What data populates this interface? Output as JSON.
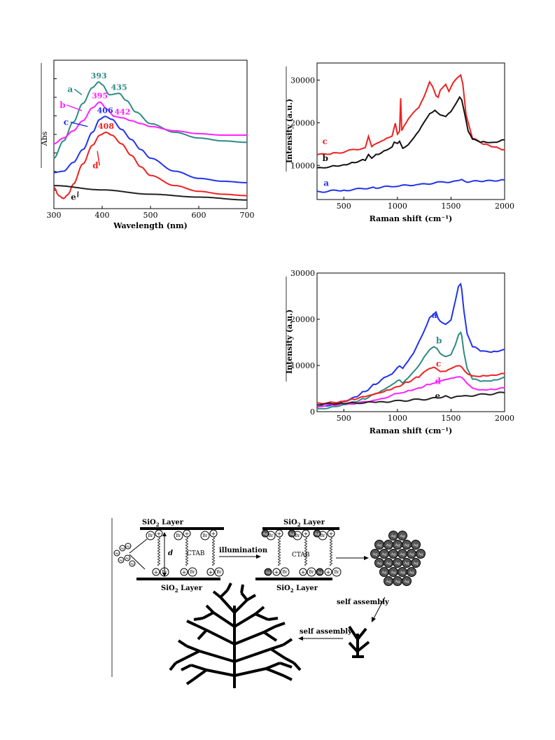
{
  "chart_data": [
    {
      "type": "line",
      "xlabel": "Wavelength (nm)",
      "ylabel": "Abs",
      "xlim": [
        300,
        700
      ],
      "xticks": [
        300,
        400,
        500,
        600,
        700
      ],
      "series": [
        {
          "name": "a",
          "color": "#2e8b84",
          "x": [
            300,
            320,
            340,
            360,
            380,
            393,
            400,
            415,
            435,
            450,
            470,
            500,
            550,
            600,
            650,
            700
          ],
          "y": [
            0.7,
            0.82,
            0.95,
            1.08,
            1.19,
            1.23,
            1.21,
            1.14,
            1.15,
            1.1,
            1.02,
            0.94,
            0.88,
            0.84,
            0.82,
            0.81
          ]
        },
        {
          "name": "b",
          "color": "#ff22ff",
          "x": [
            300,
            320,
            340,
            360,
            380,
            395,
            410,
            425,
            442,
            460,
            480,
            500,
            550,
            600,
            650,
            700
          ],
          "y": [
            0.8,
            0.84,
            0.89,
            0.96,
            1.05,
            1.09,
            1.04,
            0.99,
            0.98,
            0.96,
            0.94,
            0.92,
            0.89,
            0.87,
            0.86,
            0.86
          ]
        },
        {
          "name": "c",
          "color": "#2233ee",
          "x": [
            300,
            320,
            340,
            360,
            380,
            395,
            406,
            420,
            440,
            460,
            480,
            500,
            550,
            600,
            650,
            700
          ],
          "y": [
            0.6,
            0.61,
            0.67,
            0.76,
            0.88,
            0.97,
            0.99,
            0.97,
            0.9,
            0.83,
            0.76,
            0.7,
            0.61,
            0.56,
            0.54,
            0.53
          ]
        },
        {
          "name": "d",
          "color": "#ee2222",
          "x": [
            300,
            310,
            320,
            330,
            340,
            360,
            380,
            395,
            408,
            420,
            440,
            460,
            480,
            500,
            550,
            600,
            650,
            700
          ],
          "y": [
            0.5,
            0.44,
            0.42,
            0.45,
            0.52,
            0.66,
            0.79,
            0.86,
            0.88,
            0.86,
            0.8,
            0.72,
            0.64,
            0.58,
            0.51,
            0.47,
            0.45,
            0.44
          ]
        },
        {
          "name": "e",
          "color": "#222222",
          "x": [
            300,
            400,
            500,
            600,
            700
          ],
          "y": [
            0.51,
            0.48,
            0.45,
            0.43,
            0.41
          ]
        }
      ],
      "annotations": [
        "393",
        "435",
        "395",
        "442",
        "406",
        "408"
      ],
      "ylim": [
        0.35,
        1.38
      ],
      "curve_labels": [
        "a",
        "b",
        "c",
        "d",
        "e"
      ]
    },
    {
      "type": "line",
      "xlabel": "Raman shift  (cm⁻¹)",
      "ylabel": "Intensity  (a.u.)",
      "xlim": [
        250,
        2000
      ],
      "ylim": [
        2000,
        34000
      ],
      "xticks": [
        500,
        1000,
        1500,
        2000
      ],
      "yticks": [
        10000,
        20000,
        30000
      ],
      "series": [
        {
          "name": "c",
          "color": "#ee2222",
          "x": [
            250,
            400,
            600,
            700,
            730,
            760,
            800,
            900,
            950,
            980,
            1000,
            1020,
            1030,
            1040,
            1060,
            1100,
            1150,
            1200,
            1250,
            1300,
            1330,
            1360,
            1380,
            1400,
            1420,
            1450,
            1480,
            1520,
            1560,
            1590,
            1610,
            1640,
            1700,
            1800,
            1900,
            2000
          ],
          "y": [
            12500,
            12800,
            13600,
            14200,
            17000,
            14500,
            15000,
            16200,
            16800,
            20000,
            17500,
            18000,
            25600,
            18000,
            19200,
            21000,
            22500,
            23500,
            26000,
            29500,
            28500,
            26500,
            26000,
            27500,
            28000,
            29000,
            27500,
            29500,
            30500,
            31000,
            29000,
            22000,
            16500,
            15000,
            14200,
            13700
          ]
        },
        {
          "name": "b",
          "color": "#111111",
          "x": [
            250,
            400,
            500,
            600,
            700,
            730,
            760,
            800,
            900,
            950,
            970,
            1000,
            1020,
            1050,
            1100,
            1150,
            1200,
            1250,
            1300,
            1350,
            1400,
            1450,
            1500,
            1550,
            1580,
            1600,
            1630,
            1660,
            1700,
            1800,
            1900,
            2000
          ],
          "y": [
            9300,
            9800,
            10200,
            10800,
            11300,
            12500,
            11500,
            12500,
            13700,
            14500,
            15500,
            15000,
            15500,
            14000,
            15000,
            16500,
            18000,
            20000,
            22000,
            23000,
            22000,
            21500,
            22500,
            24500,
            26000,
            25500,
            22000,
            18000,
            16000,
            15500,
            15500,
            16000
          ]
        },
        {
          "name": "a",
          "color": "#2233ee",
          "x": [
            250,
            500,
            800,
            1000,
            1200,
            1400,
            1550,
            1600,
            1650,
            1800,
            2000
          ],
          "y": [
            3800,
            4200,
            4800,
            5200,
            5500,
            6000,
            6300,
            6800,
            6200,
            6300,
            6600
          ]
        }
      ],
      "curve_labels": [
        "c",
        "b",
        "a"
      ]
    },
    {
      "type": "line",
      "xlabel": "Raman shift  (cm⁻¹)",
      "ylabel": "Intensity  (a.u.)",
      "xlim": [
        250,
        2000
      ],
      "ylim": [
        0,
        30000
      ],
      "xticks": [
        500,
        1000,
        1500,
        2000
      ],
      "yticks": [
        0,
        10000,
        20000,
        30000
      ],
      "series": [
        {
          "name": "a",
          "color": "#2233ee",
          "x": [
            250,
            400,
            500,
            600,
            700,
            800,
            900,
            950,
            1000,
            1020,
            1050,
            1100,
            1150,
            1200,
            1250,
            1300,
            1330,
            1360,
            1380,
            1400,
            1450,
            1500,
            1540,
            1570,
            1590,
            1600,
            1620,
            1650,
            1700,
            1800,
            1900,
            2000
          ],
          "y": [
            1000,
            1500,
            2200,
            3200,
            4500,
            6000,
            7500,
            8000,
            9500,
            10000,
            9500,
            11000,
            12500,
            15000,
            17500,
            20500,
            21000,
            21500,
            20000,
            19500,
            19000,
            20000,
            24000,
            27000,
            27500,
            26500,
            22000,
            17000,
            14000,
            13000,
            13000,
            13500
          ]
        },
        {
          "name": "b",
          "color": "#2e8b84",
          "x": [
            250,
            400,
            500,
            600,
            700,
            800,
            900,
            950,
            1000,
            1020,
            1050,
            1100,
            1150,
            1200,
            1250,
            1300,
            1340,
            1370,
            1400,
            1450,
            1500,
            1540,
            1570,
            1590,
            1600,
            1620,
            1650,
            1700,
            1800,
            1900,
            2000
          ],
          "y": [
            500,
            1000,
            1600,
            2200,
            2800,
            3800,
            5000,
            5800,
            6800,
            7000,
            6200,
            7200,
            8500,
            10000,
            12000,
            13500,
            14000,
            13500,
            12500,
            12000,
            12500,
            14500,
            16500,
            17000,
            16500,
            13000,
            9500,
            7000,
            6500,
            6800,
            7500
          ]
        },
        {
          "name": "c",
          "color": "#ee2222",
          "x": [
            250,
            400,
            500,
            600,
            700,
            800,
            900,
            1000,
            1100,
            1200,
            1250,
            1300,
            1340,
            1360,
            1400,
            1450,
            1500,
            1550,
            1580,
            1600,
            1630,
            1660,
            1700,
            1800,
            1900,
            2000
          ],
          "y": [
            1800,
            2000,
            2300,
            2700,
            3200,
            3800,
            4600,
            5500,
            6500,
            7500,
            8500,
            9200,
            9600,
            9500,
            8800,
            8700,
            9200,
            9800,
            10000,
            9800,
            8800,
            8000,
            7600,
            7800,
            8000,
            8200
          ]
        },
        {
          "name": "d",
          "color": "#ff22ff",
          "x": [
            250,
            400,
            600,
            800,
            1000,
            1100,
            1200,
            1300,
            1350,
            1400,
            1450,
            1500,
            1550,
            1580,
            1600,
            1650,
            1700,
            1800,
            1900,
            2000
          ],
          "y": [
            1200,
            1500,
            1800,
            2500,
            3800,
            4500,
            5200,
            6000,
            6300,
            6500,
            6800,
            7200,
            7600,
            7700,
            7400,
            6000,
            5000,
            4800,
            4900,
            5100
          ]
        },
        {
          "name": "e",
          "color": "#222222",
          "x": [
            250,
            500,
            800,
            1000,
            1200,
            1400,
            1450,
            1500,
            1600,
            1800,
            2000
          ],
          "y": [
            1600,
            1800,
            2000,
            2300,
            2600,
            3000,
            3600,
            3000,
            3300,
            3700,
            4100
          ]
        }
      ],
      "curve_labels": [
        "a",
        "b",
        "c",
        "d",
        "e"
      ]
    }
  ],
  "schematic": {
    "top_layer_left": "SiO",
    "top_layer_right": "SiO",
    "layer_word": "Layer",
    "subscript": "2",
    "bottom_layer_left": "SiO",
    "bottom_layer_right": "SiO",
    "ctab": "CTAB",
    "ctab2": "CTAB",
    "d_label": "d",
    "illumination": "illumination",
    "self_assembly_1": "self assembly",
    "self_assembly_2": "self assembly",
    "br": "Br",
    "ag": "Ag",
    "plus": "+"
  }
}
